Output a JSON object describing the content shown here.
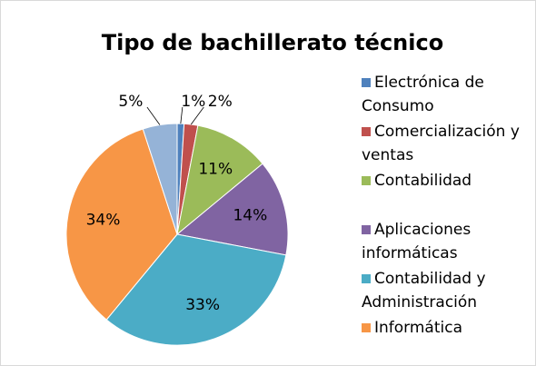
{
  "chart_data": {
    "type": "pie",
    "title": "Tipo de bachillerato técnico",
    "categories": [
      "Electrónica de Consumo",
      "Comercialización y ventas",
      "Contabilidad",
      "Aplicaciones informáticas",
      "Contabilidad y Administración",
      "Informática",
      null
    ],
    "values": [
      1,
      2,
      11,
      14,
      33,
      34,
      5
    ],
    "colors": [
      "#4f81bd",
      "#c0504d",
      "#9bbb59",
      "#8064a2",
      "#4bacc6",
      "#f79646",
      "#95b3d7"
    ]
  }
}
